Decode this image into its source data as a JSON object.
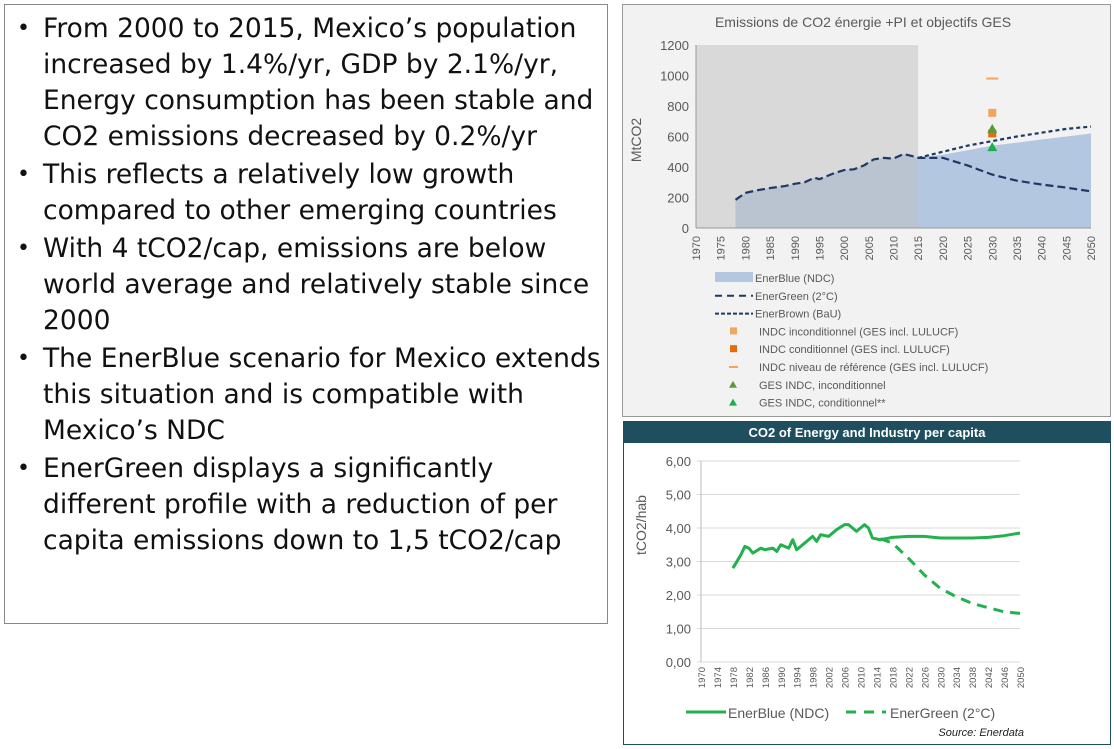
{
  "bullets": [
    "From 2000 to 2015, Mexico’s population increased by 1.4%/yr, GDP by 2.1%/yr, Energy consumption has been stable and CO2 emissions decreased by 0.2%/yr",
    "This reflects a relatively low growth compared to other emerging countries",
    "With 4 tCO2/cap, emissions are below world average and relatively stable since 2000",
    "The EnerBlue scenario for Mexico extends this situation and is compatible with Mexico’s NDC",
    "EnerGreen displays a significantly different profile with a reduction of per capita emissions down to 1,5 tCO2/cap"
  ],
  "chart_data": [
    {
      "type": "line",
      "title": "Emissions de CO2 énergie +PI et objectifs GES",
      "ylabel": "MtCO2",
      "xlabel": "",
      "ylim": [
        0,
        1200
      ],
      "yticks": [
        "0",
        "200",
        "400",
        "600",
        "800",
        "1000",
        "1200"
      ],
      "xlim": [
        1970,
        2050
      ],
      "xticks": [
        "1970",
        "1975",
        "1980",
        "1985",
        "1990",
        "1995",
        "2000",
        "2005",
        "2010",
        "2015",
        "2020",
        "2025",
        "2030",
        "2035",
        "2040",
        "2045",
        "2050"
      ],
      "history_shaded": [
        1970,
        2015
      ],
      "legend_position": "bottom",
      "colors": {
        "area": "#b4c7e0",
        "line": "#1f3864",
        "history": "#d9d9d9",
        "orange_light": "#f4a460",
        "orange": "#e46c0a",
        "green_dark": "#5a9a3a",
        "green": "#19b04a"
      },
      "series": [
        {
          "name": "EnerBlue (NDC)",
          "style": "area",
          "x": [
            1978,
            1980,
            1982,
            1985,
            1988,
            1990,
            1992,
            1994,
            1995,
            1998,
            2000,
            2002,
            2004,
            2006,
            2008,
            2010,
            2012,
            2014,
            2015,
            2020,
            2025,
            2030,
            2035,
            2040,
            2045,
            2050
          ],
          "y": [
            185,
            230,
            245,
            262,
            275,
            290,
            300,
            330,
            320,
            360,
            380,
            385,
            410,
            450,
            460,
            455,
            485,
            470,
            460,
            480,
            510,
            540,
            560,
            580,
            600,
            620
          ]
        },
        {
          "name": "EnerGreen (2°C)",
          "style": "longdash",
          "x": [
            1978,
            1980,
            1982,
            1985,
            1988,
            1990,
            1992,
            1994,
            1995,
            1998,
            2000,
            2002,
            2004,
            2006,
            2008,
            2010,
            2012,
            2014,
            2015,
            2020,
            2025,
            2030,
            2035,
            2040,
            2045,
            2050
          ],
          "y": [
            185,
            230,
            245,
            262,
            275,
            290,
            300,
            330,
            320,
            360,
            380,
            385,
            410,
            450,
            460,
            455,
            485,
            470,
            460,
            460,
            410,
            350,
            310,
            285,
            265,
            240
          ]
        },
        {
          "name": "EnerBrown (BaU)",
          "style": "shortdash",
          "x": [
            2015,
            2020,
            2025,
            2030,
            2035,
            2040,
            2045,
            2050
          ],
          "y": [
            460,
            500,
            540,
            570,
            600,
            625,
            650,
            665
          ]
        }
      ],
      "points": [
        {
          "name": "INDC inconditionnel (GES incl. LULUCF)",
          "marker": "square",
          "color": "#f4a460",
          "x": 2030,
          "y": 755
        },
        {
          "name": "INDC  conditionnel (GES incl. LULUCF)",
          "marker": "square",
          "color": "#e46c0a",
          "x": 2030,
          "y": 620
        },
        {
          "name": "INDC niveau de référence (GES incl. LULUCF)",
          "marker": "dash",
          "color": "#f4a460",
          "x": 2030,
          "y": 980
        },
        {
          "name": "GES INDC, inconditionnel",
          "marker": "triangle",
          "color": "#5a9a3a",
          "x": 2030,
          "y": 650
        },
        {
          "name": "GES INDC, conditionnel**",
          "marker": "triangle",
          "color": "#19b04a",
          "x": 2030,
          "y": 530
        }
      ]
    },
    {
      "type": "line",
      "title": "CO2 of Energy and Industry per capita",
      "ylabel": "tCO2/hab",
      "xlabel": "",
      "ylim": [
        0,
        6
      ],
      "yticks": [
        "0,00",
        "1,00",
        "2,00",
        "3,00",
        "4,00",
        "5,00",
        "6,00"
      ],
      "xlim": [
        1970,
        2050
      ],
      "xticks": [
        "1970",
        "1974",
        "1978",
        "1982",
        "1986",
        "1990",
        "1994",
        "1998",
        "2002",
        "2006",
        "2010",
        "2014",
        "2018",
        "2022",
        "2026",
        "2030",
        "2034",
        "2038",
        "2042",
        "2046",
        "2050"
      ],
      "legend_position": "bottom",
      "source": "Source: Enerdata",
      "colors": {
        "line": "#22b14c",
        "header": "#1f4e5f",
        "grid": "#d9d9d9"
      },
      "series": [
        {
          "name": "EnerBlue (NDC)",
          "style": "solid",
          "x": [
            1978,
            1980,
            1981,
            1982,
            1983,
            1985,
            1986,
            1988,
            1989,
            1990,
            1992,
            1993,
            1994,
            1996,
            1998,
            1999,
            2000,
            2002,
            2004,
            2006,
            2007,
            2009,
            2011,
            2012,
            2013,
            2015,
            2018,
            2022,
            2026,
            2030,
            2034,
            2038,
            2042,
            2046,
            2050
          ],
          "y": [
            2.8,
            3.2,
            3.45,
            3.4,
            3.25,
            3.4,
            3.35,
            3.4,
            3.3,
            3.5,
            3.4,
            3.65,
            3.35,
            3.55,
            3.75,
            3.6,
            3.8,
            3.75,
            3.95,
            4.1,
            4.1,
            3.9,
            4.1,
            4.0,
            3.7,
            3.65,
            3.72,
            3.75,
            3.75,
            3.7,
            3.7,
            3.7,
            3.72,
            3.77,
            3.85
          ]
        },
        {
          "name": "EnerGreen (2°C)",
          "style": "dash",
          "x": [
            2015,
            2018,
            2022,
            2026,
            2030,
            2034,
            2038,
            2042,
            2046,
            2050
          ],
          "y": [
            3.68,
            3.55,
            3.1,
            2.6,
            2.2,
            1.95,
            1.75,
            1.62,
            1.5,
            1.45
          ]
        }
      ]
    }
  ]
}
